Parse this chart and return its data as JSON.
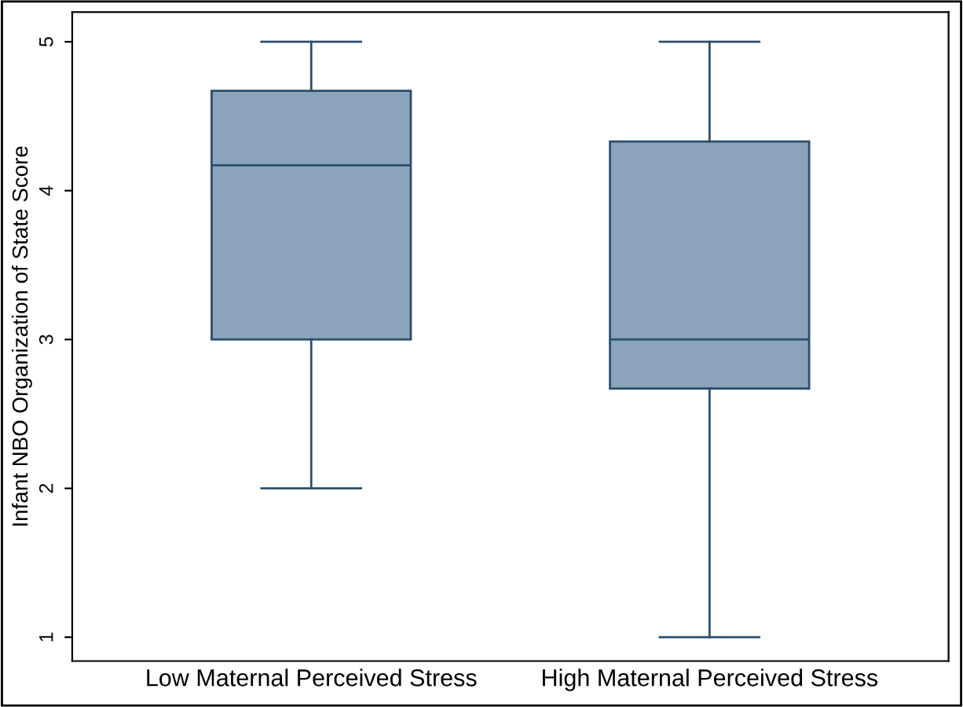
{
  "chart_data": {
    "type": "box",
    "ylabel": "Infant NBO Organization of State Score",
    "categories": [
      "Low Maternal Perceived Stress",
      "High Maternal Perceived Stress"
    ],
    "boxes": [
      {
        "low": 2,
        "q1": 3,
        "median": 4.17,
        "q3": 4.67,
        "high": 5
      },
      {
        "low": 1,
        "q1": 2.67,
        "median": 3,
        "q3": 4.33,
        "high": 5
      }
    ],
    "color": "#8ba3bb",
    "ylim": [
      0.84,
      5.2
    ],
    "yticks": [
      1,
      2,
      3,
      4,
      5
    ],
    "grid": false
  }
}
